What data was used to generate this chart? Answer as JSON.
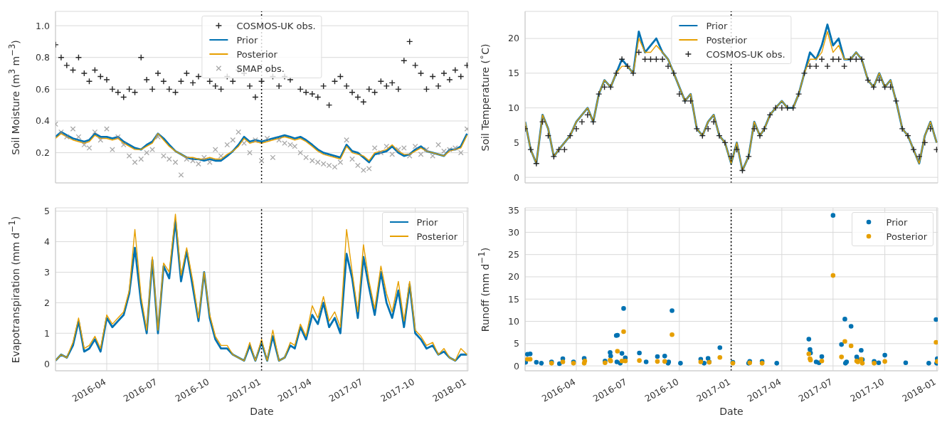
{
  "chart_data": [
    {
      "type": "line",
      "ylabel": "Soil Moisture (m$^{3}$ m$^{−3}$)",
      "tick_labels": "y",
      "grid": true,
      "legend": "top",
      "x": [
        "2016-01-01",
        "2016-01-11",
        "2016-01-21",
        "2016-02-01",
        "2016-02-11",
        "2016-02-21",
        "2016-03-01",
        "2016-03-11",
        "2016-03-21",
        "2016-04-01",
        "2016-04-11",
        "2016-04-21",
        "2016-05-01",
        "2016-05-11",
        "2016-05-21",
        "2016-06-01",
        "2016-06-11",
        "2016-06-21",
        "2016-07-01",
        "2016-07-11",
        "2016-07-21",
        "2016-08-01",
        "2016-08-11",
        "2016-08-21",
        "2016-09-01",
        "2016-09-11",
        "2016-09-21",
        "2016-10-01",
        "2016-10-11",
        "2016-10-21",
        "2016-11-01",
        "2016-11-11",
        "2016-11-21",
        "2016-12-01",
        "2016-12-11",
        "2016-12-21",
        "2017-01-01",
        "2017-01-11",
        "2017-01-21",
        "2017-02-01",
        "2017-02-11",
        "2017-02-21",
        "2017-03-01",
        "2017-03-11",
        "2017-03-21",
        "2017-04-01",
        "2017-04-11",
        "2017-04-21",
        "2017-05-01",
        "2017-05-11",
        "2017-05-21",
        "2017-06-01",
        "2017-06-11",
        "2017-06-21",
        "2017-07-01",
        "2017-07-11",
        "2017-07-21",
        "2017-08-01",
        "2017-08-11",
        "2017-08-21",
        "2017-09-01",
        "2017-09-11",
        "2017-09-21",
        "2017-10-01",
        "2017-10-11",
        "2017-10-21",
        "2017-11-01",
        "2017-11-11",
        "2017-11-21",
        "2017-12-01",
        "2017-12-11",
        "2017-12-21",
        "2018-01-01"
      ],
      "xlim": [
        "2016-01-01",
        "2018-01-03"
      ],
      "xticks": [
        "2016-04",
        "2016-07",
        "2016-10",
        "2017-01",
        "2017-04",
        "2017-07",
        "2017-10",
        "2018-01"
      ],
      "ylim": [
        0.01,
        1.09
      ],
      "yticks": [
        0.2,
        0.4,
        0.6,
        0.8,
        {
          "value": 1,
          "label": "1.0"
        }
      ],
      "ref_lines": [
        {
          "axis": "x",
          "value": "2017-01-01",
          "color": "#000000",
          "line_style": "dotted"
        }
      ],
      "series": [
        {
          "name": "COSMOS-UK obs.",
          "type": "scatter",
          "marker": "cross",
          "color": "#262626",
          "values": [
            0.88,
            0.8,
            0.75,
            0.72,
            0.8,
            0.7,
            0.65,
            0.72,
            0.68,
            0.66,
            0.6,
            0.58,
            0.55,
            0.6,
            0.58,
            0.8,
            0.66,
            0.6,
            0.7,
            0.65,
            0.6,
            0.58,
            0.65,
            0.7,
            0.64,
            0.68,
            null,
            0.65,
            0.62,
            0.6,
            0.68,
            0.65,
            0.72,
            0.7,
            0.62,
            0.55,
            0.65,
            0.72,
            0.68,
            0.62,
            0.68,
            0.66,
            null,
            0.6,
            0.58,
            0.57,
            0.55,
            0.62,
            0.5,
            0.65,
            0.68,
            0.62,
            0.58,
            0.55,
            0.52,
            0.6,
            0.58,
            0.65,
            0.62,
            0.64,
            0.6,
            0.78,
            0.9,
            0.75,
            0.7,
            0.6,
            0.68,
            0.62,
            0.7,
            0.66,
            0.72,
            0.68,
            0.75
          ]
        },
        {
          "name": "Prior",
          "color": "#0072b2",
          "values": [
            0.3,
            0.33,
            0.31,
            0.29,
            0.28,
            0.27,
            0.28,
            0.32,
            0.3,
            0.3,
            0.29,
            0.3,
            0.27,
            0.25,
            0.23,
            0.22,
            0.25,
            0.27,
            0.32,
            0.29,
            0.25,
            0.21,
            0.19,
            0.17,
            0.16,
            0.16,
            0.15,
            0.16,
            0.15,
            0.15,
            0.18,
            0.21,
            0.25,
            0.3,
            0.27,
            0.28,
            0.27,
            0.28,
            0.29,
            0.3,
            0.31,
            0.3,
            0.29,
            0.3,
            0.28,
            0.25,
            0.22,
            0.2,
            0.19,
            0.18,
            0.17,
            0.25,
            0.21,
            0.2,
            0.17,
            0.14,
            0.19,
            0.2,
            0.21,
            0.24,
            0.2,
            0.18,
            0.19,
            0.22,
            0.24,
            0.21,
            0.2,
            0.19,
            0.18,
            0.22,
            0.22,
            0.24,
            0.32
          ]
        },
        {
          "name": "Posterior",
          "color": "#e69f00",
          "values": [
            0.29,
            0.32,
            0.3,
            0.28,
            0.27,
            0.26,
            0.27,
            0.31,
            0.29,
            0.29,
            0.28,
            0.29,
            0.26,
            0.24,
            0.22,
            0.22,
            0.24,
            0.26,
            0.32,
            0.28,
            0.24,
            0.21,
            0.19,
            0.17,
            0.17,
            0.16,
            0.16,
            0.17,
            0.16,
            0.16,
            0.19,
            0.21,
            0.24,
            0.29,
            0.26,
            0.27,
            0.26,
            0.27,
            0.28,
            0.29,
            0.3,
            0.29,
            0.28,
            0.29,
            0.27,
            0.24,
            0.21,
            0.19,
            0.18,
            0.17,
            0.16,
            0.24,
            0.2,
            0.19,
            0.18,
            0.15,
            0.2,
            0.21,
            0.22,
            0.25,
            0.21,
            0.19,
            0.19,
            0.21,
            0.23,
            0.21,
            0.2,
            0.19,
            0.18,
            0.21,
            0.22,
            0.23,
            0.31
          ]
        },
        {
          "name": "SMAP obs.",
          "type": "scatter",
          "marker": "x",
          "color": "#8c8c8c",
          "values": [
            0.38,
            0.33,
            0.3,
            0.35,
            0.3,
            0.25,
            0.23,
            0.33,
            0.28,
            0.35,
            0.22,
            0.3,
            0.25,
            0.18,
            0.14,
            0.16,
            0.2,
            0.22,
            0.3,
            0.18,
            0.16,
            0.14,
            0.06,
            0.16,
            0.15,
            0.13,
            0.17,
            0.14,
            0.22,
            0.18,
            0.25,
            0.28,
            0.33,
            0.26,
            0.2,
            0.28,
            0.15,
            0.29,
            0.17,
            0.28,
            0.26,
            0.25,
            0.24,
            0.2,
            0.17,
            0.15,
            0.14,
            0.13,
            0.12,
            0.11,
            0.14,
            0.28,
            0.16,
            0.12,
            0.09,
            0.1,
            0.23,
            0.2,
            0.24,
            0.19,
            0.22,
            0.23,
            0.18,
            0.24,
            0.19,
            0.22,
            0.18,
            0.25,
            0.21,
            0.22,
            0.23,
            0.2,
            0.35
          ]
        }
      ]
    },
    {
      "type": "line",
      "ylabel": "Soil Temperature ($^{∘}$C)",
      "tick_labels": "y",
      "grid": true,
      "legend": "top",
      "x": [
        "2016-01-01",
        "2016-01-11",
        "2016-01-21",
        "2016-02-01",
        "2016-02-11",
        "2016-02-21",
        "2016-03-01",
        "2016-03-11",
        "2016-03-21",
        "2016-04-01",
        "2016-04-11",
        "2016-04-21",
        "2016-05-01",
        "2016-05-11",
        "2016-05-21",
        "2016-06-01",
        "2016-06-11",
        "2016-06-21",
        "2016-07-01",
        "2016-07-11",
        "2016-07-21",
        "2016-08-01",
        "2016-08-11",
        "2016-08-21",
        "2016-09-01",
        "2016-09-11",
        "2016-09-21",
        "2016-10-01",
        "2016-10-11",
        "2016-10-21",
        "2016-11-01",
        "2016-11-11",
        "2016-11-21",
        "2016-12-01",
        "2016-12-11",
        "2016-12-21",
        "2017-01-01",
        "2017-01-11",
        "2017-01-21",
        "2017-02-01",
        "2017-02-11",
        "2017-02-21",
        "2017-03-01",
        "2017-03-11",
        "2017-03-21",
        "2017-04-01",
        "2017-04-11",
        "2017-04-21",
        "2017-05-01",
        "2017-05-11",
        "2017-05-21",
        "2017-06-01",
        "2017-06-11",
        "2017-06-21",
        "2017-07-01",
        "2017-07-11",
        "2017-07-21",
        "2017-08-01",
        "2017-08-11",
        "2017-08-21",
        "2017-09-01",
        "2017-09-11",
        "2017-09-21",
        "2017-10-01",
        "2017-10-11",
        "2017-10-21",
        "2017-11-01",
        "2017-11-11",
        "2017-11-21",
        "2017-12-01",
        "2017-12-11",
        "2017-12-21",
        "2018-01-01"
      ],
      "xlim": [
        "2016-01-01",
        "2018-01-03"
      ],
      "xticks": [
        "2016-04",
        "2016-07",
        "2016-10",
        "2017-01",
        "2017-04",
        "2017-07",
        "2017-10",
        "2018-01"
      ],
      "ylim": [
        -0.8,
        23.9
      ],
      "yticks": [
        0,
        5,
        10,
        15,
        20
      ],
      "ref_lines": [
        {
          "axis": "x",
          "value": "2017-01-01",
          "color": "#000000",
          "line_style": "dotted"
        }
      ],
      "series": [
        {
          "name": "Prior",
          "color": "#0072b2",
          "values": [
            8,
            4,
            2,
            9,
            7,
            3,
            4,
            5,
            6,
            8,
            9,
            10,
            8,
            12,
            14,
            13,
            15,
            17,
            16,
            15,
            21,
            18,
            19,
            20,
            18,
            17,
            15,
            13,
            11,
            12,
            7,
            6,
            8,
            9,
            6,
            5,
            2,
            5,
            1,
            3,
            8,
            6,
            7,
            9,
            10,
            11,
            10,
            10,
            12,
            15,
            18,
            17,
            19,
            22,
            19,
            20,
            17,
            17,
            18,
            17,
            14,
            13,
            15,
            13,
            14,
            11,
            7,
            6,
            4,
            2,
            6,
            8,
            5
          ]
        },
        {
          "name": "Posterior",
          "color": "#e69f00",
          "values": [
            8,
            4,
            2,
            9,
            7,
            3,
            4,
            5,
            6,
            8,
            9,
            10,
            8,
            12,
            14,
            13,
            15,
            16,
            16,
            15,
            20,
            18,
            18,
            19,
            18,
            17,
            15,
            13,
            11,
            12,
            7,
            6,
            8,
            9,
            6,
            5,
            2,
            5,
            1,
            3,
            8,
            6,
            7,
            9,
            10,
            11,
            10,
            10,
            12,
            15,
            17,
            17,
            18,
            21,
            18,
            19,
            17,
            17,
            18,
            17,
            14,
            13,
            15,
            13,
            14,
            11,
            7,
            6,
            4,
            2,
            6,
            8,
            5
          ]
        },
        {
          "name": "COSMOS-UK obs.",
          "type": "scatter",
          "marker": "cross",
          "color": "#262626",
          "values": [
            7,
            4,
            2,
            8,
            6,
            3,
            4,
            4,
            6,
            7,
            8,
            9,
            8,
            12,
            13,
            13,
            15,
            17,
            16,
            15,
            18,
            17,
            17,
            17,
            17,
            16,
            15,
            12,
            11,
            11,
            7,
            6,
            7,
            8,
            6,
            5,
            3,
            4,
            1,
            3,
            7,
            6,
            7,
            9,
            10,
            10,
            10,
            10,
            12,
            15,
            16,
            16,
            17,
            16,
            17,
            17,
            16,
            17,
            17,
            17,
            14,
            13,
            14,
            13,
            13,
            11,
            7,
            6,
            4,
            3,
            5,
            7,
            4
          ]
        }
      ]
    },
    {
      "type": "line",
      "xlabel": "Date",
      "ylabel": "Evapotranspiration (mm d$^{−1}$)",
      "grid": true,
      "legend": "top right",
      "x": [
        "2016-01-01",
        "2016-01-11",
        "2016-01-21",
        "2016-02-01",
        "2016-02-11",
        "2016-02-21",
        "2016-03-01",
        "2016-03-11",
        "2016-03-21",
        "2016-04-01",
        "2016-04-11",
        "2016-04-21",
        "2016-05-01",
        "2016-05-11",
        "2016-05-21",
        "2016-06-01",
        "2016-06-11",
        "2016-06-21",
        "2016-07-01",
        "2016-07-11",
        "2016-07-21",
        "2016-08-01",
        "2016-08-11",
        "2016-08-21",
        "2016-09-01",
        "2016-09-11",
        "2016-09-21",
        "2016-10-01",
        "2016-10-11",
        "2016-10-21",
        "2016-11-01",
        "2016-11-11",
        "2016-11-21",
        "2016-12-01",
        "2016-12-11",
        "2016-12-21",
        "2017-01-01",
        "2017-01-11",
        "2017-01-21",
        "2017-02-01",
        "2017-02-11",
        "2017-02-21",
        "2017-03-01",
        "2017-03-11",
        "2017-03-21",
        "2017-04-01",
        "2017-04-11",
        "2017-04-21",
        "2017-05-01",
        "2017-05-11",
        "2017-05-21",
        "2017-06-01",
        "2017-06-11",
        "2017-06-21",
        "2017-07-01",
        "2017-07-11",
        "2017-07-21",
        "2017-08-01",
        "2017-08-11",
        "2017-08-21",
        "2017-09-01",
        "2017-09-11",
        "2017-09-21",
        "2017-10-01",
        "2017-10-11",
        "2017-10-21",
        "2017-11-01",
        "2017-11-11",
        "2017-11-21",
        "2017-12-01",
        "2017-12-11",
        "2017-12-21",
        "2018-01-01"
      ],
      "xlim": [
        "2016-01-01",
        "2018-01-03"
      ],
      "xticks": [
        "2016-04",
        "2016-07",
        "2016-10",
        "2017-01",
        "2017-04",
        "2017-07",
        "2017-10",
        "2018-01"
      ],
      "ylim": [
        -0.23,
        5.11
      ],
      "yticks": [
        0,
        1,
        2,
        3,
        4,
        5
      ],
      "ref_lines": [
        {
          "axis": "x",
          "value": "2017-01-01",
          "color": "#000000",
          "line_style": "dotted"
        }
      ],
      "series": [
        {
          "name": "Prior",
          "color": "#0072b2",
          "values": [
            0.1,
            0.3,
            0.2,
            0.6,
            1.4,
            0.4,
            0.5,
            0.8,
            0.4,
            1.5,
            1.2,
            1.4,
            1.6,
            2.3,
            3.8,
            2.0,
            1.0,
            3.4,
            1.0,
            3.2,
            2.8,
            4.7,
            2.7,
            3.7,
            2.5,
            1.4,
            3.0,
            1.5,
            0.8,
            0.5,
            0.5,
            0.3,
            0.2,
            0.1,
            0.6,
            0.1,
            0.7,
            0.1,
            0.9,
            0.1,
            0.2,
            0.6,
            0.5,
            1.2,
            0.8,
            1.6,
            1.3,
            2.0,
            1.2,
            1.5,
            1.0,
            3.6,
            2.8,
            1.5,
            3.5,
            2.5,
            1.6,
            3.0,
            2.0,
            1.5,
            2.4,
            1.2,
            2.6,
            1.0,
            0.8,
            0.5,
            0.6,
            0.3,
            0.4,
            0.2,
            0.1,
            0.3,
            0.3
          ]
        },
        {
          "name": "Posterior",
          "color": "#e69f00",
          "values": [
            0.1,
            0.3,
            0.2,
            0.7,
            1.5,
            0.5,
            0.6,
            0.9,
            0.5,
            1.6,
            1.3,
            1.5,
            1.7,
            2.4,
            4.4,
            2.2,
            1.1,
            3.5,
            1.1,
            3.3,
            3.0,
            4.9,
            2.9,
            3.8,
            2.7,
            1.5,
            3.0,
            1.6,
            0.9,
            0.6,
            0.6,
            0.3,
            0.2,
            0.1,
            0.7,
            0.1,
            0.8,
            0.1,
            1.1,
            0.1,
            0.2,
            0.7,
            0.6,
            1.3,
            0.9,
            1.9,
            1.5,
            2.2,
            1.4,
            1.7,
            1.2,
            4.4,
            3.0,
            1.7,
            3.9,
            2.7,
            1.8,
            3.2,
            2.3,
            1.7,
            2.7,
            1.4,
            2.7,
            1.1,
            0.9,
            0.6,
            0.7,
            0.3,
            0.5,
            0.2,
            0.1,
            0.5,
            0.3
          ]
        }
      ]
    },
    {
      "type": "scatter",
      "xlabel": "Date",
      "ylabel": "Runoff (mm d$^{−1}$)",
      "grid": true,
      "legend": "top right",
      "marker": "circle",
      "xlim": [
        "2016-01-01",
        "2018-01-03"
      ],
      "xticks": [
        "2016-04",
        "2016-07",
        "2016-10",
        "2017-01",
        "2017-04",
        "2017-07",
        "2017-10",
        "2018-01"
      ],
      "ylim": [
        -1.1,
        35.5
      ],
      "yticks": [
        0,
        5,
        10,
        15,
        20,
        25,
        30,
        35
      ],
      "ref_lines": [
        {
          "axis": "x",
          "value": "2017-01-01",
          "color": "#000000",
          "line_style": "dotted"
        }
      ],
      "series": [
        {
          "name": "Prior",
          "color": "#0072b2",
          "x": [
            "2016-01-02",
            "2016-01-05",
            "2016-01-10",
            "2016-01-21",
            "2016-01-30",
            "2016-02-17",
            "2016-03-02",
            "2016-03-08",
            "2016-03-27",
            "2016-04-15",
            "2016-05-22",
            "2016-05-31",
            "2016-06-01",
            "2016-06-11",
            "2016-06-13",
            "2016-06-12",
            "2016-06-18",
            "2016-06-21",
            "2016-06-24",
            "2016-06-27",
            "2016-07-22",
            "2016-08-03",
            "2016-08-23",
            "2016-09-05",
            "2016-09-11",
            "2016-09-12",
            "2016-09-18",
            "2016-10-03",
            "2016-11-08",
            "2016-11-14",
            "2016-11-21",
            "2016-11-23",
            "2016-12-12",
            "2017-01-04",
            "2017-02-01",
            "2017-02-03",
            "2017-02-25",
            "2017-03-23",
            "2017-05-19",
            "2017-05-21",
            "2017-05-22",
            "2017-06-01",
            "2017-06-06",
            "2017-06-11",
            "2017-07-01",
            "2017-07-16",
            "2017-07-22",
            "2017-07-23",
            "2017-07-25",
            "2017-08-02",
            "2017-08-12",
            "2017-08-14",
            "2017-08-20",
            "2017-08-22",
            "2017-09-12",
            "2017-09-20",
            "2017-10-01",
            "2017-11-07",
            "2017-12-18",
            "2017-12-31",
            "2018-01-01",
            "2018-01-02"
          ],
          "values": [
            0.8,
            2.6,
            2.7,
            0.8,
            0.6,
            0.9,
            0.5,
            1.6,
            0.9,
            1.7,
            1.1,
            3.0,
            2.2,
            6.8,
            6.9,
            0.9,
            0.6,
            2.8,
            12.9,
            1.8,
            2.9,
            0.9,
            2.1,
            2.2,
            0.6,
            0.9,
            12.4,
            0.6,
            1.5,
            0.6,
            1.7,
            0.9,
            4.1,
            0.8,
            0.6,
            1.0,
            1.0,
            0.6,
            6.0,
            3.7,
            2.9,
            0.9,
            0.7,
            2.1,
            33.8,
            4.8,
            10.5,
            0.6,
            0.9,
            8.9,
            2.0,
            1.4,
            3.5,
            1.4,
            1.0,
            0.7,
            2.4,
            0.7,
            0.6,
            10.4,
            0.6,
            1.6
          ]
        },
        {
          "name": "Posterior",
          "color": "#e69f00",
          "x": [
            "2016-01-05",
            "2016-01-10",
            "2016-02-17",
            "2016-03-08",
            "2016-03-27",
            "2016-04-15",
            "2016-04-16",
            "2016-05-22",
            "2016-05-31",
            "2016-06-01",
            "2016-06-13",
            "2016-06-21",
            "2016-06-24",
            "2016-06-27",
            "2016-07-22",
            "2016-08-23",
            "2016-09-05",
            "2016-09-18",
            "2016-11-08",
            "2016-11-23",
            "2016-12-12",
            "2017-01-04",
            "2017-02-03",
            "2017-02-25",
            "2017-05-19",
            "2017-05-21",
            "2017-05-22",
            "2017-06-11",
            "2017-07-01",
            "2017-07-16",
            "2017-07-22",
            "2017-08-02",
            "2017-08-12",
            "2017-08-14",
            "2017-08-20",
            "2017-08-22",
            "2017-09-12",
            "2017-10-01",
            "2017-12-31",
            "2018-01-02"
          ],
          "values": [
            1.5,
            1.5,
            0.6,
            0.9,
            0.6,
            0.6,
            1.1,
            0.7,
            1.3,
            1.1,
            3.3,
            1.1,
            7.7,
            1.1,
            1.2,
            1.0,
            1.0,
            7.0,
            0.9,
            0.8,
            1.9,
            0.6,
            0.7,
            0.6,
            2.7,
            1.6,
            1.3,
            1.1,
            20.3,
            2.0,
            5.5,
            4.5,
            1.1,
            0.9,
            1.5,
            0.6,
            0.6,
            1.0,
            5.3,
            1.0
          ]
        }
      ]
    }
  ]
}
